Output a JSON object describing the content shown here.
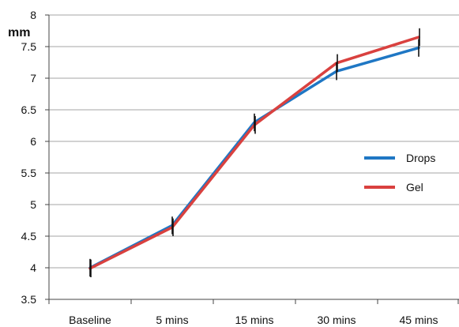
{
  "chart_data": {
    "type": "line",
    "title": "",
    "xlabel": "",
    "ylabel": "mm",
    "categories": [
      "Baseline",
      "5 mins",
      "15 mins",
      "30 mins",
      "45 mins"
    ],
    "ylim": [
      3.5,
      8
    ],
    "yticks": [
      "3.5",
      "4",
      "4.5",
      "5",
      "5.5",
      "6",
      "6.5",
      "7",
      "7.5",
      "8"
    ],
    "grid": true,
    "legend_position": "right",
    "error_bar_halfwidth": 0.14,
    "series": [
      {
        "name": "Drops",
        "color": "#1f77c4",
        "values": [
          4.0,
          4.67,
          6.3,
          7.11,
          7.48
        ]
      },
      {
        "name": "Gel",
        "color": "#d9413f",
        "values": [
          3.99,
          4.64,
          6.26,
          7.24,
          7.65
        ]
      }
    ]
  }
}
